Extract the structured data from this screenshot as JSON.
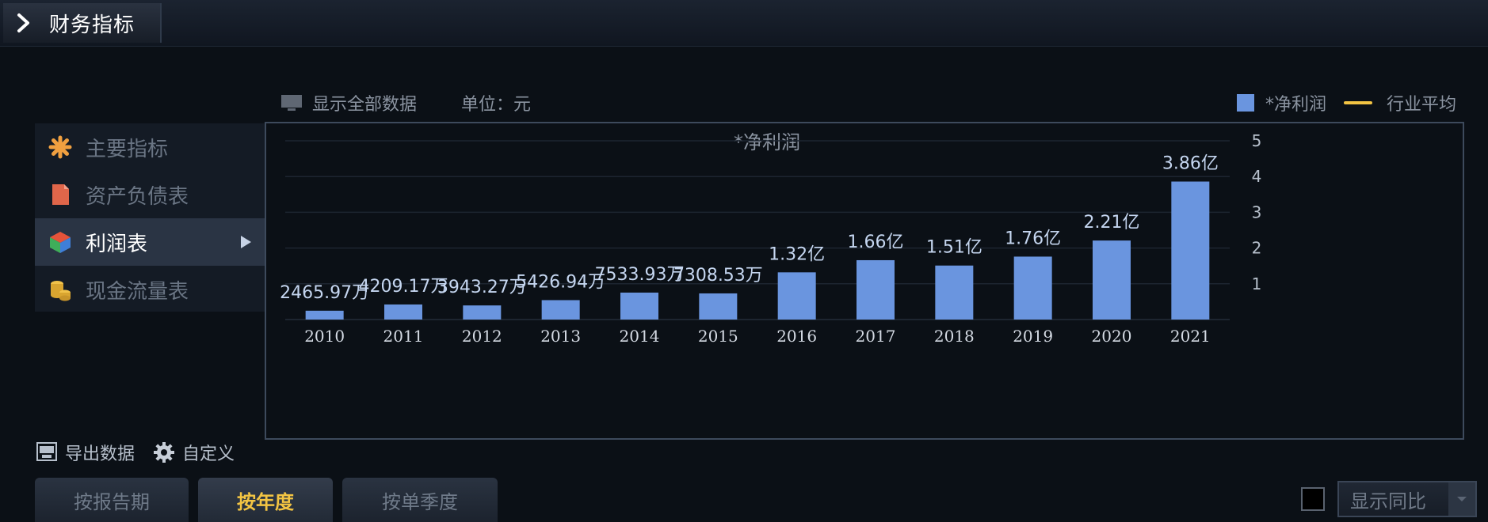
{
  "window": {
    "title": "财务指标"
  },
  "toolbar": {
    "show_all": "显示全部数据",
    "unit": "单位：元"
  },
  "legend": {
    "series_label": "*净利润",
    "avg_label": "行业平均"
  },
  "sidebar": {
    "items": [
      {
        "label": "主要指标",
        "icon": "asterisk-icon"
      },
      {
        "label": "资产负债表",
        "icon": "document-icon"
      },
      {
        "label": "利润表",
        "icon": "cube-icon",
        "active": true
      },
      {
        "label": "现金流量表",
        "icon": "coins-icon"
      }
    ]
  },
  "bottom": {
    "export_label": "导出数据",
    "custom_label": "自定义"
  },
  "tabs": [
    {
      "label": "按报告期",
      "active": false
    },
    {
      "label": "按年度",
      "active": true
    },
    {
      "label": "按单季度",
      "active": false
    }
  ],
  "yoy": {
    "label": "显示同比"
  },
  "colors": {
    "bar": "#6a95df",
    "avg_line": "#f3c443",
    "active_tab_text": "#f3c443",
    "text_muted": "#8b94a1"
  },
  "chart_data": {
    "type": "bar",
    "title": "*净利润",
    "categories": [
      "2010",
      "2011",
      "2012",
      "2013",
      "2014",
      "2015",
      "2016",
      "2017",
      "2018",
      "2019",
      "2020",
      "2021"
    ],
    "series": [
      {
        "name": "*净利润",
        "values": [
          0.2466,
          0.4209,
          0.3943,
          0.5427,
          0.7534,
          0.7309,
          1.32,
          1.66,
          1.51,
          1.76,
          2.21,
          3.86
        ],
        "labels": [
          "2465.97万",
          "4209.17万",
          "3943.27万",
          "5426.94万",
          "7533.93万",
          "7308.53万",
          "1.32亿",
          "1.66亿",
          "1.51亿",
          "1.76亿",
          "2.21亿",
          "3.86亿"
        ]
      }
    ],
    "yticks": [
      "1",
      "2",
      "3",
      "4",
      "5"
    ],
    "ylim": [
      0,
      5
    ],
    "grid": true
  }
}
